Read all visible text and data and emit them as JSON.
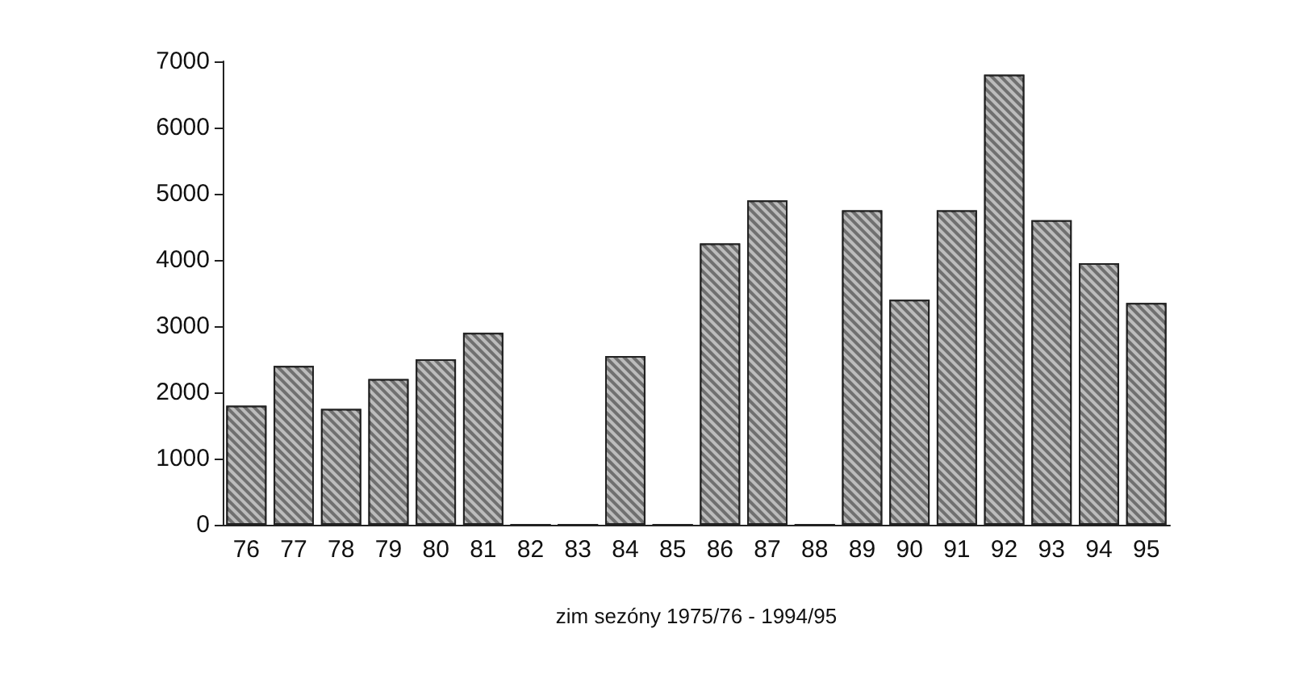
{
  "chart_data": {
    "type": "bar",
    "xlabel": "zim sezóny 1975/76 - 1994/95",
    "categories": [
      "76",
      "77",
      "78",
      "79",
      "80",
      "81",
      "82",
      "83",
      "84",
      "85",
      "86",
      "87",
      "88",
      "89",
      "90",
      "91",
      "92",
      "93",
      "94",
      "95"
    ],
    "values": [
      1800,
      2400,
      1750,
      2200,
      2500,
      2900,
      0,
      0,
      2550,
      0,
      4250,
      4900,
      0,
      4750,
      3400,
      4750,
      6800,
      4600,
      3950,
      3350
    ],
    "color": "#707070",
    "ylim": [
      0,
      7000
    ],
    "yticks": [
      0,
      1000,
      2000,
      3000,
      4000,
      5000,
      6000,
      7000
    ],
    "grid": false
  }
}
